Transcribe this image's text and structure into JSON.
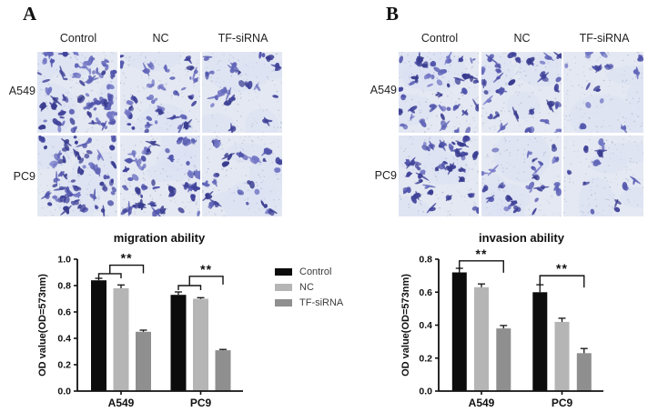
{
  "panels": [
    {
      "label": "A",
      "column_labels": [
        "Control",
        "NC",
        "TF-siRNA"
      ],
      "row_labels": [
        "A549",
        "PC9"
      ],
      "micrograph_cell_density": [
        [
          64,
          40,
          22
        ],
        [
          56,
          48,
          27
        ]
      ]
    },
    {
      "label": "B",
      "column_labels": [
        "Control",
        "NC",
        "TF-siRNA"
      ],
      "row_labels": [
        "A549",
        "PC9"
      ],
      "micrograph_cell_density": [
        [
          42,
          34,
          14
        ],
        [
          38,
          27,
          13
        ]
      ]
    }
  ],
  "legend": {
    "items": [
      {
        "label": "Control",
        "color": "#0c0c0c"
      },
      {
        "label": "NC",
        "color": "#b5b5b5"
      },
      {
        "label": "TF-siRNA",
        "color": "#8f8f8f"
      }
    ]
  },
  "colors": {
    "bar_control": "#0c0c0c",
    "bar_nc": "#b5b5b5",
    "bar_tf_sirna": "#8f8f8f",
    "micrograph_background": "#e4e8f2",
    "cell_stain_purple": "#5155ab",
    "axis": "#111111"
  },
  "chart_data": [
    {
      "type": "bar",
      "title": "migration ability",
      "xlabel": "",
      "ylabel": "OD value(OD=573nm)",
      "categories": [
        "A549",
        "PC9"
      ],
      "series": [
        {
          "name": "Control",
          "color": "#0c0c0c",
          "values": [
            0.84,
            0.73
          ],
          "errors": [
            0.015,
            0.022
          ]
        },
        {
          "name": "NC",
          "color": "#b5b5b5",
          "values": [
            0.78,
            0.7
          ],
          "errors": [
            0.025,
            0.008
          ]
        },
        {
          "name": "TF-siRNA",
          "color": "#8f8f8f",
          "values": [
            0.45,
            0.31
          ],
          "errors": [
            0.012,
            0.006
          ]
        }
      ],
      "ylim": [
        0,
        1.0
      ],
      "ytick_step": 0.2,
      "grid": false,
      "legend_position": "right-of-chart",
      "significance": [
        {
          "category": "A549",
          "label": "**",
          "style": "nested",
          "inner_level": 0.89,
          "outer_level": 0.955
        },
        {
          "category": "PC9",
          "label": "**",
          "style": "nested",
          "inner_level": 0.8,
          "outer_level": 0.87
        }
      ]
    },
    {
      "type": "bar",
      "title": "invasion ability",
      "xlabel": "",
      "ylabel": "OD value(OD=573nm)",
      "categories": [
        "A549",
        "PC9"
      ],
      "series": [
        {
          "name": "Control",
          "color": "#0c0c0c",
          "values": [
            0.72,
            0.6
          ],
          "errors": [
            0.025,
            0.045
          ]
        },
        {
          "name": "NC",
          "color": "#b5b5b5",
          "values": [
            0.63,
            0.42
          ],
          "errors": [
            0.02,
            0.022
          ]
        },
        {
          "name": "TF-siRNA",
          "color": "#8f8f8f",
          "values": [
            0.38,
            0.23
          ],
          "errors": [
            0.018,
            0.028
          ]
        }
      ],
      "ylim": [
        0,
        0.8
      ],
      "ytick_step": 0.2,
      "grid": false,
      "legend_position": "none",
      "significance": [
        {
          "category": "A549",
          "label": "**",
          "style": "plain",
          "level": 0.79
        },
        {
          "category": "PC9",
          "label": "**",
          "style": "plain",
          "level": 0.7
        }
      ]
    }
  ]
}
